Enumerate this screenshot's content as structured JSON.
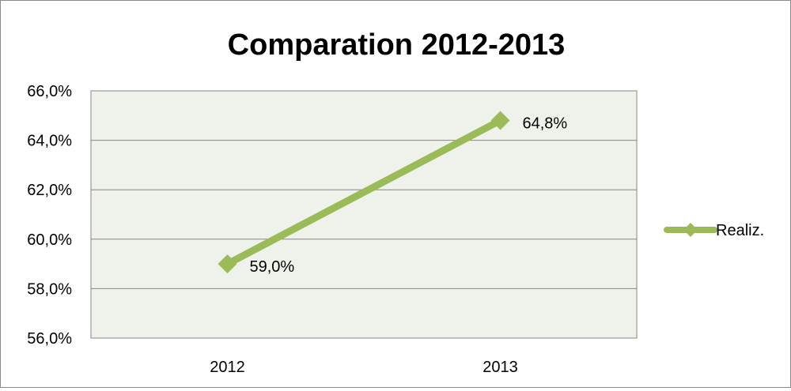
{
  "chart_data": {
    "type": "line",
    "title": "Comparation 2012-2013",
    "categories": [
      "2012",
      "2013"
    ],
    "series": [
      {
        "name": "Realiz.",
        "values": [
          59.0,
          64.8
        ],
        "color": "#9bbb59"
      }
    ],
    "data_labels": [
      "59,0%",
      "64,8%"
    ],
    "ylim": [
      56.0,
      66.0
    ],
    "yticks": [
      66.0,
      64.0,
      62.0,
      60.0,
      58.0,
      56.0
    ],
    "ytick_labels": [
      "66,0%",
      "64,0%",
      "62,0%",
      "60,0%",
      "58,0%",
      "56,0%"
    ],
    "grid": true,
    "legend": "right",
    "plot_background": "#eff2ea",
    "gridline_color": "#868686"
  }
}
